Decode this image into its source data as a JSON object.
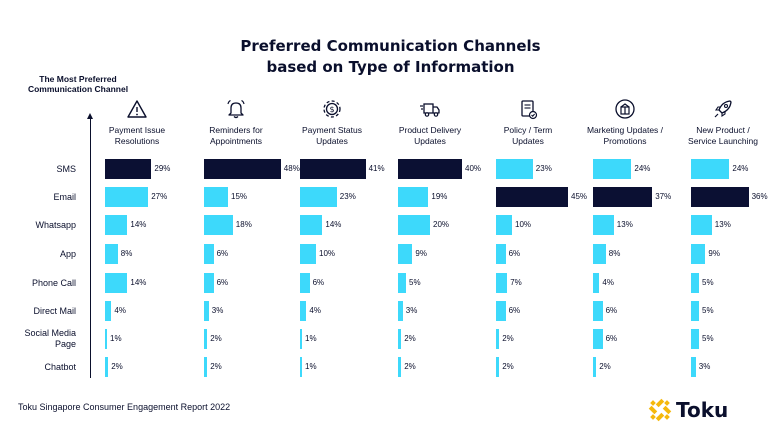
{
  "chart_data": {
    "type": "bar",
    "title_line1": "Preferred Communication Channels",
    "title_line2": "based on Type of Information",
    "ylabel_line1": "The Most Preferred",
    "ylabel_line2": "Communication Channel",
    "categories": [
      "SMS",
      "Email",
      "Whatsapp",
      "App",
      "Phone Call",
      "Direct Mail",
      "Social Media Page",
      "Chatbot"
    ],
    "category_lines": [
      [
        "SMS"
      ],
      [
        "Email"
      ],
      [
        "Whatsapp"
      ],
      [
        "App"
      ],
      [
        "Phone Call"
      ],
      [
        "Direct Mail"
      ],
      [
        "Social Media",
        "Page"
      ],
      [
        "Chatbot"
      ]
    ],
    "series": [
      {
        "name": "Payment Issue Resolutions",
        "lines": [
          "Payment Issue",
          "Resolutions"
        ],
        "icon": "warning-icon",
        "values": [
          29,
          27,
          14,
          8,
          14,
          4,
          1,
          2
        ]
      },
      {
        "name": "Reminders for Appointments",
        "lines": [
          "Reminders for",
          "Appointments"
        ],
        "icon": "bell-icon",
        "values": [
          48,
          15,
          18,
          6,
          6,
          3,
          2,
          2
        ]
      },
      {
        "name": "Payment Status Updates",
        "lines": [
          "Payment Status",
          "Updates"
        ],
        "icon": "gear-dollar-icon",
        "values": [
          41,
          23,
          14,
          10,
          6,
          4,
          1,
          1
        ]
      },
      {
        "name": "Product Delivery Updates",
        "lines": [
          "Product Delivery",
          "Updates"
        ],
        "icon": "delivery-truck-icon",
        "values": [
          40,
          19,
          20,
          9,
          5,
          3,
          2,
          2
        ]
      },
      {
        "name": "Policy / Term Updates",
        "lines": [
          "Policy / Term",
          "Updates"
        ],
        "icon": "policy-document-icon",
        "values": [
          23,
          45,
          10,
          6,
          7,
          6,
          2,
          2
        ]
      },
      {
        "name": "Marketing Updates / Promotions",
        "lines": [
          "Marketing Updates /",
          "Promotions"
        ],
        "icon": "gift-box-icon",
        "values": [
          24,
          37,
          13,
          8,
          4,
          6,
          6,
          2
        ]
      },
      {
        "name": "New Product / Service Launching",
        "lines": [
          "New Product /",
          "Service Launching"
        ],
        "icon": "rocket-icon",
        "values": [
          24,
          36,
          13,
          9,
          5,
          5,
          5,
          3
        ]
      }
    ],
    "value_suffix": "%",
    "colors": {
      "highlight": "#0b1033",
      "default": "#3dd9fb",
      "text": "#0a0f2c",
      "logo_accent": "#f5b80b"
    }
  },
  "footer": {
    "source": "Toku Singapore Consumer Engagement Report 2022",
    "brand": "Toku"
  }
}
